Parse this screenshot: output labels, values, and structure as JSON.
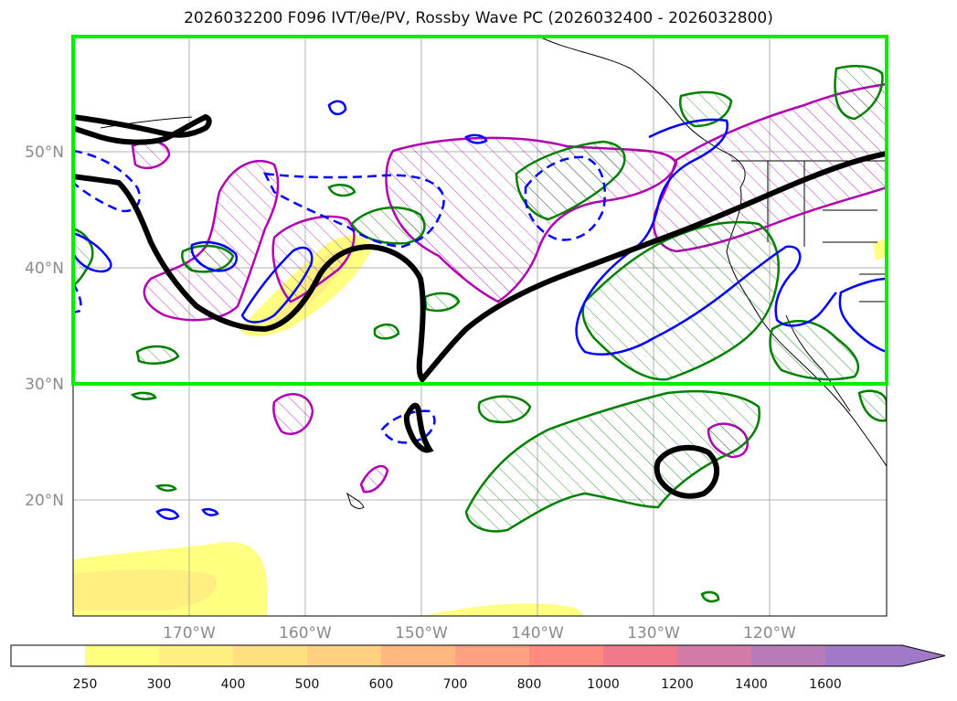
{
  "title": "2026032200 F096 IVT/θe/PV, Rossby Wave PC (2026032400 - 2026032800)",
  "map": {
    "lat_labels": [
      "50°N",
      "40°N",
      "30°N",
      "20°N"
    ],
    "lat_values": [
      50,
      40,
      30,
      20
    ],
    "lon_labels": [
      "170°W",
      "160°W",
      "150°W",
      "140°W",
      "130°W",
      "120°W"
    ],
    "lon_values": [
      -170,
      -160,
      -150,
      -140,
      -130,
      -120
    ],
    "extent": {
      "lon_min": -180,
      "lon_max": -110,
      "lat_min": 10,
      "lat_max": 60
    },
    "highlight_box": {
      "lat_min": 30,
      "lat_max": 60,
      "color": "#00ee00"
    }
  },
  "colorbar": {
    "labels": [
      "250",
      "300",
      "400",
      "500",
      "600",
      "700",
      "800",
      "1000",
      "1200",
      "1400",
      "1600"
    ],
    "colors": [
      "#ffffff",
      "#ffff80",
      "#ffef80",
      "#ffe080",
      "#ffd080",
      "#ffb880",
      "#ffa080",
      "#ff8a80",
      "#f07a8a",
      "#d27aa8",
      "#b87ab8",
      "#a07ac8"
    ],
    "extend": "max"
  },
  "contour_colors": {
    "theta_e": "#000000",
    "pv_positive": "#008000",
    "pv_negative": "#0000ff",
    "rossby_pc": "#b000b0",
    "ivt_fill": "#ffff66"
  }
}
